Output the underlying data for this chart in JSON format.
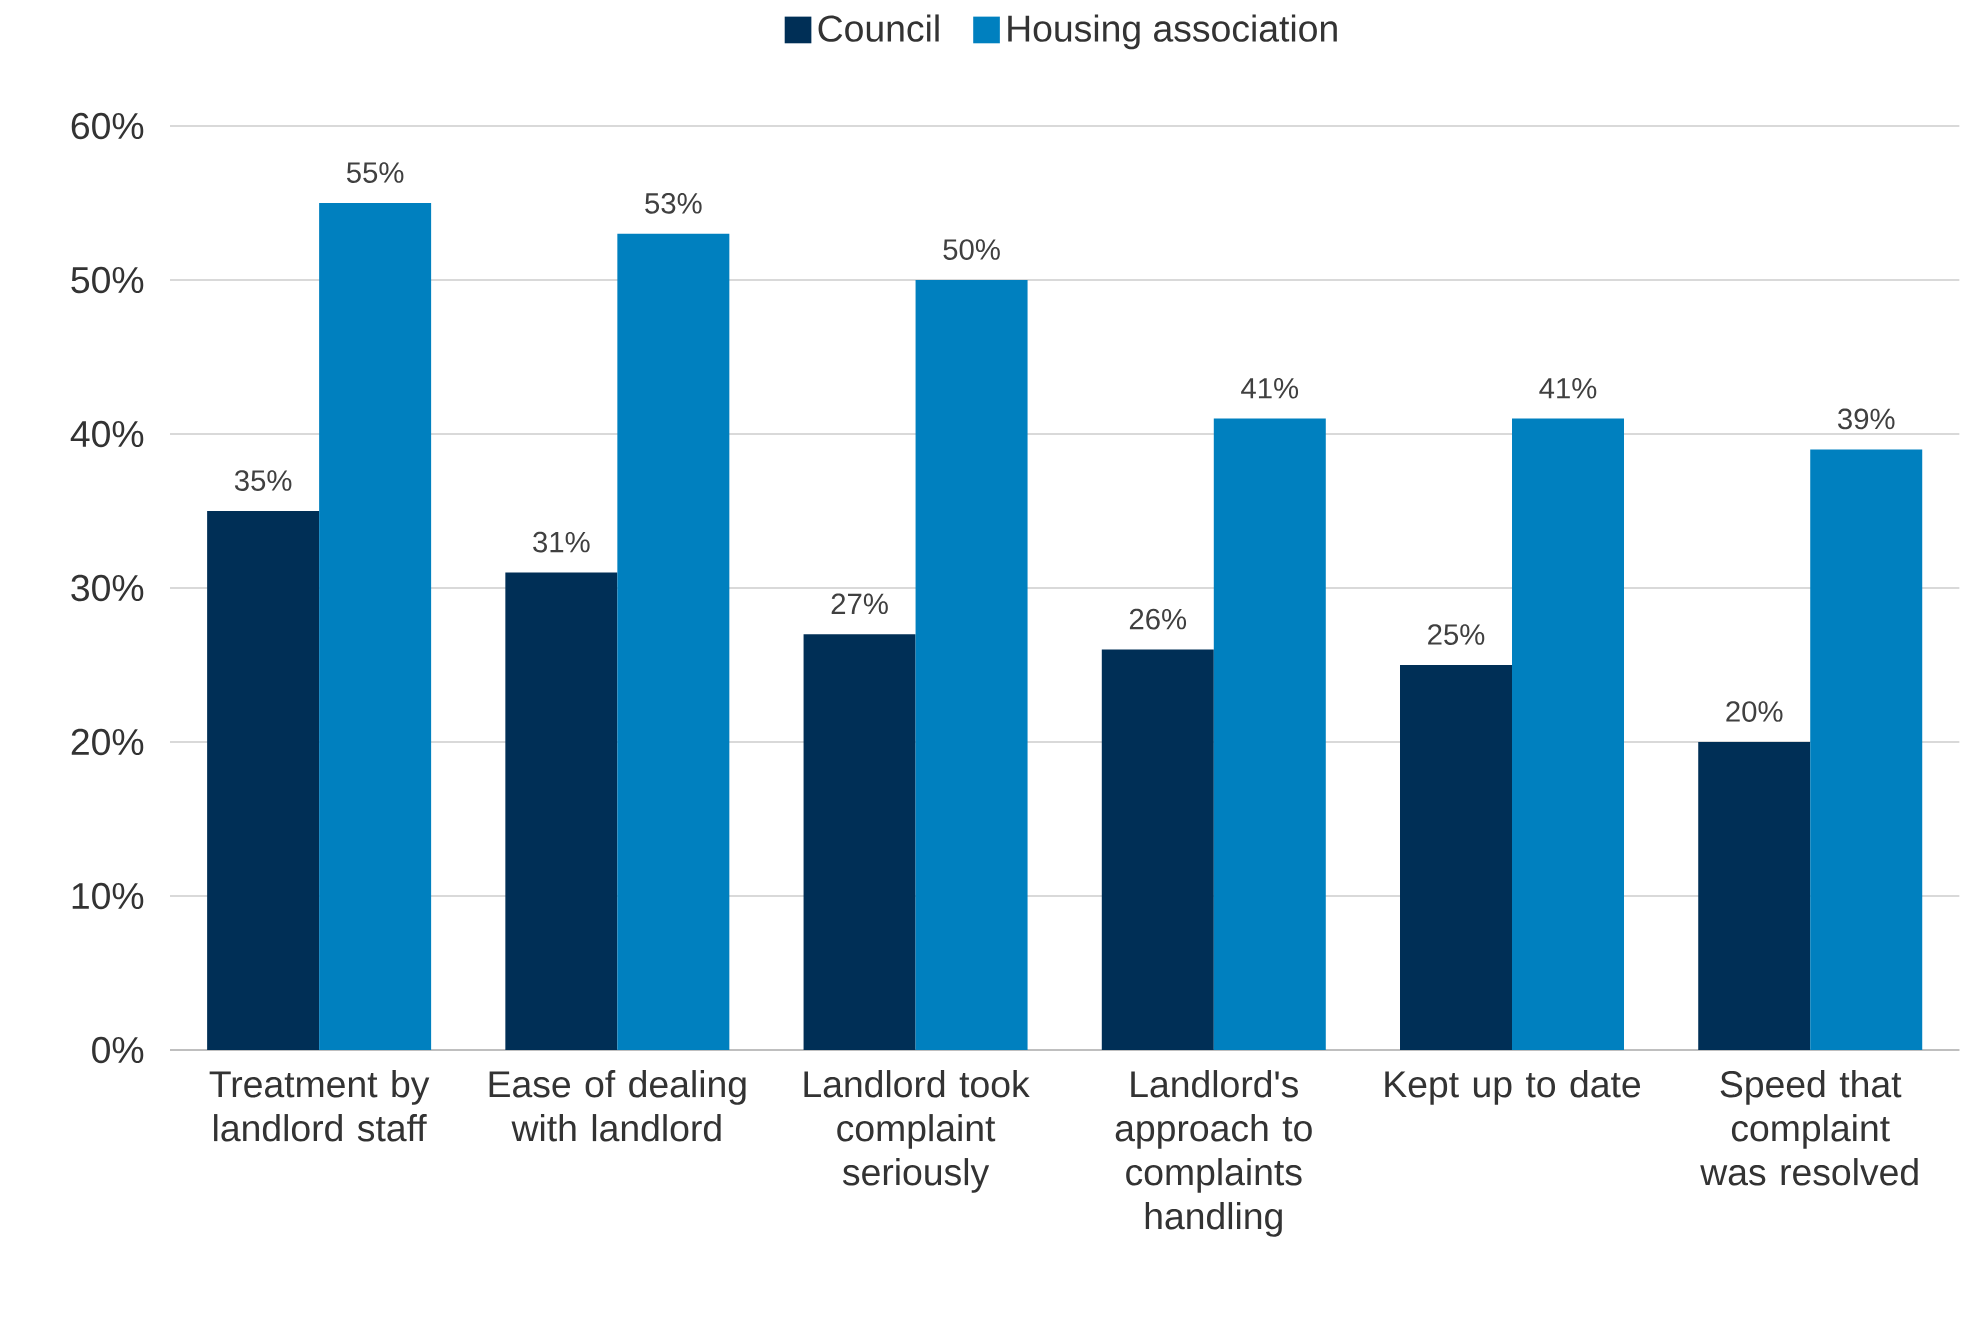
{
  "chart_data": {
    "type": "bar",
    "categories": [
      "Treatment by landlord staff",
      "Ease of dealing with landlord",
      "Landlord took complaint seriously",
      "Landlord's approach to complaints handling",
      "Kept up to date",
      "Speed that complaint was resolved"
    ],
    "series": [
      {
        "name": "Council",
        "color": "#002f56",
        "values": [
          35,
          31,
          27,
          26,
          25,
          20
        ],
        "value_labels": [
          "35%",
          "31%",
          "27%",
          "26%",
          "25%",
          "20%"
        ]
      },
      {
        "name": "Housing association",
        "color": "#0080bf",
        "values": [
          55,
          53,
          50,
          41,
          41,
          39
        ],
        "value_labels": [
          "55%",
          "53%",
          "50%",
          "41%",
          "41%",
          "39%"
        ]
      }
    ],
    "ylim": [
      0,
      60
    ],
    "yticks": [
      {
        "value": 0,
        "label": "0%"
      },
      {
        "value": 10,
        "label": "10%"
      },
      {
        "value": 20,
        "label": "20%"
      },
      {
        "value": 30,
        "label": "30%"
      },
      {
        "value": 40,
        "label": "40%"
      },
      {
        "value": 50,
        "label": "50%"
      },
      {
        "value": 60,
        "label": "60%"
      }
    ],
    "grid": "y",
    "legend": "top"
  }
}
